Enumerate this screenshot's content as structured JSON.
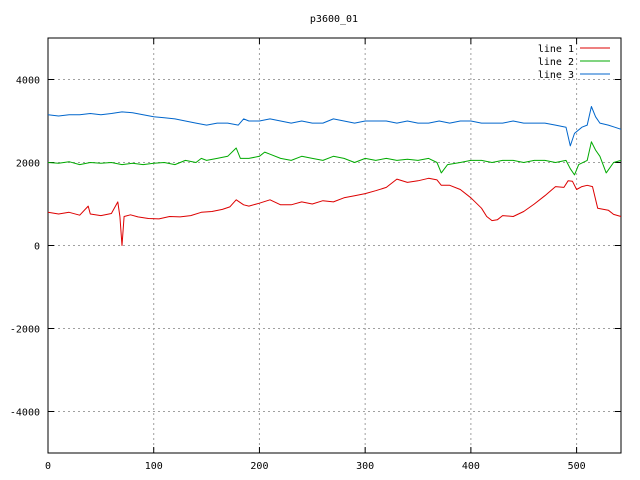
{
  "chart_data": {
    "type": "line",
    "title": "p3600_01",
    "xlabel": "",
    "ylabel": "",
    "xlim": [
      0,
      542
    ],
    "ylim": [
      -5000,
      5000
    ],
    "x_ticks": [
      0,
      100,
      200,
      300,
      400,
      500
    ],
    "y_ticks": [
      -4000,
      -2000,
      0,
      2000,
      4000
    ],
    "grid": true,
    "legend_position": "top-right",
    "series": [
      {
        "name": "line 1",
        "color": "#dd0000",
        "points": [
          [
            0,
            800
          ],
          [
            10,
            760
          ],
          [
            20,
            800
          ],
          [
            30,
            730
          ],
          [
            38,
            950
          ],
          [
            40,
            760
          ],
          [
            50,
            720
          ],
          [
            60,
            770
          ],
          [
            66,
            1050
          ],
          [
            68,
            700
          ],
          [
            70,
            0
          ],
          [
            72,
            700
          ],
          [
            78,
            740
          ],
          [
            85,
            690
          ],
          [
            95,
            650
          ],
          [
            105,
            640
          ],
          [
            115,
            700
          ],
          [
            125,
            690
          ],
          [
            135,
            720
          ],
          [
            145,
            800
          ],
          [
            155,
            820
          ],
          [
            165,
            870
          ],
          [
            172,
            930
          ],
          [
            178,
            1100
          ],
          [
            185,
            980
          ],
          [
            190,
            950
          ],
          [
            200,
            1020
          ],
          [
            210,
            1100
          ],
          [
            220,
            980
          ],
          [
            230,
            980
          ],
          [
            240,
            1050
          ],
          [
            250,
            1000
          ],
          [
            260,
            1080
          ],
          [
            270,
            1050
          ],
          [
            280,
            1150
          ],
          [
            290,
            1200
          ],
          [
            300,
            1250
          ],
          [
            310,
            1320
          ],
          [
            320,
            1400
          ],
          [
            330,
            1600
          ],
          [
            340,
            1520
          ],
          [
            350,
            1560
          ],
          [
            360,
            1620
          ],
          [
            368,
            1580
          ],
          [
            372,
            1450
          ],
          [
            380,
            1450
          ],
          [
            390,
            1350
          ],
          [
            400,
            1150
          ],
          [
            410,
            900
          ],
          [
            415,
            700
          ],
          [
            420,
            600
          ],
          [
            425,
            620
          ],
          [
            430,
            720
          ],
          [
            440,
            700
          ],
          [
            450,
            820
          ],
          [
            460,
            1000
          ],
          [
            470,
            1200
          ],
          [
            480,
            1420
          ],
          [
            488,
            1400
          ],
          [
            492,
            1560
          ],
          [
            496,
            1550
          ],
          [
            500,
            1350
          ],
          [
            505,
            1420
          ],
          [
            510,
            1450
          ],
          [
            515,
            1420
          ],
          [
            520,
            900
          ],
          [
            530,
            850
          ],
          [
            535,
            750
          ],
          [
            542,
            700
          ]
        ]
      },
      {
        "name": "line 2",
        "color": "#00aa00",
        "points": [
          [
            0,
            2000
          ],
          [
            10,
            1980
          ],
          [
            20,
            2020
          ],
          [
            30,
            1950
          ],
          [
            40,
            2000
          ],
          [
            50,
            1980
          ],
          [
            60,
            2000
          ],
          [
            70,
            1950
          ],
          [
            80,
            1980
          ],
          [
            90,
            1950
          ],
          [
            100,
            1980
          ],
          [
            110,
            2000
          ],
          [
            120,
            1950
          ],
          [
            130,
            2050
          ],
          [
            140,
            2000
          ],
          [
            145,
            2100
          ],
          [
            150,
            2050
          ],
          [
            160,
            2100
          ],
          [
            170,
            2150
          ],
          [
            178,
            2350
          ],
          [
            182,
            2100
          ],
          [
            190,
            2100
          ],
          [
            200,
            2150
          ],
          [
            205,
            2250
          ],
          [
            210,
            2200
          ],
          [
            220,
            2100
          ],
          [
            230,
            2050
          ],
          [
            240,
            2150
          ],
          [
            250,
            2100
          ],
          [
            260,
            2050
          ],
          [
            270,
            2150
          ],
          [
            280,
            2100
          ],
          [
            290,
            2000
          ],
          [
            300,
            2100
          ],
          [
            310,
            2050
          ],
          [
            320,
            2100
          ],
          [
            330,
            2050
          ],
          [
            340,
            2080
          ],
          [
            350,
            2050
          ],
          [
            360,
            2100
          ],
          [
            368,
            2000
          ],
          [
            372,
            1750
          ],
          [
            378,
            1950
          ],
          [
            390,
            2000
          ],
          [
            400,
            2050
          ],
          [
            410,
            2050
          ],
          [
            420,
            2000
          ],
          [
            430,
            2050
          ],
          [
            440,
            2050
          ],
          [
            450,
            2000
          ],
          [
            460,
            2050
          ],
          [
            470,
            2050
          ],
          [
            480,
            2000
          ],
          [
            490,
            2050
          ],
          [
            494,
            1850
          ],
          [
            498,
            1700
          ],
          [
            502,
            1950
          ],
          [
            510,
            2050
          ],
          [
            514,
            2500
          ],
          [
            518,
            2300
          ],
          [
            522,
            2150
          ],
          [
            528,
            1750
          ],
          [
            535,
            2000
          ],
          [
            542,
            2050
          ]
        ]
      },
      {
        "name": "line 3",
        "color": "#0066cc",
        "points": [
          [
            0,
            3150
          ],
          [
            10,
            3120
          ],
          [
            20,
            3150
          ],
          [
            30,
            3150
          ],
          [
            40,
            3180
          ],
          [
            50,
            3150
          ],
          [
            60,
            3180
          ],
          [
            70,
            3220
          ],
          [
            80,
            3200
          ],
          [
            90,
            3150
          ],
          [
            100,
            3100
          ],
          [
            110,
            3080
          ],
          [
            120,
            3050
          ],
          [
            130,
            3000
          ],
          [
            140,
            2950
          ],
          [
            150,
            2900
          ],
          [
            160,
            2950
          ],
          [
            170,
            2950
          ],
          [
            180,
            2900
          ],
          [
            185,
            3050
          ],
          [
            190,
            3000
          ],
          [
            200,
            3000
          ],
          [
            210,
            3050
          ],
          [
            220,
            3000
          ],
          [
            230,
            2950
          ],
          [
            240,
            3000
          ],
          [
            250,
            2950
          ],
          [
            260,
            2950
          ],
          [
            270,
            3050
          ],
          [
            280,
            3000
          ],
          [
            290,
            2950
          ],
          [
            300,
            3000
          ],
          [
            310,
            3000
          ],
          [
            320,
            3000
          ],
          [
            330,
            2950
          ],
          [
            340,
            3000
          ],
          [
            350,
            2950
          ],
          [
            360,
            2950
          ],
          [
            370,
            3000
          ],
          [
            380,
            2950
          ],
          [
            390,
            3000
          ],
          [
            400,
            3000
          ],
          [
            410,
            2950
          ],
          [
            420,
            2950
          ],
          [
            430,
            2950
          ],
          [
            440,
            3000
          ],
          [
            450,
            2950
          ],
          [
            460,
            2950
          ],
          [
            470,
            2950
          ],
          [
            480,
            2900
          ],
          [
            490,
            2850
          ],
          [
            494,
            2400
          ],
          [
            498,
            2700
          ],
          [
            505,
            2850
          ],
          [
            510,
            2900
          ],
          [
            514,
            3350
          ],
          [
            518,
            3100
          ],
          [
            522,
            2950
          ],
          [
            530,
            2900
          ],
          [
            536,
            2850
          ],
          [
            542,
            2800
          ]
        ]
      }
    ]
  }
}
